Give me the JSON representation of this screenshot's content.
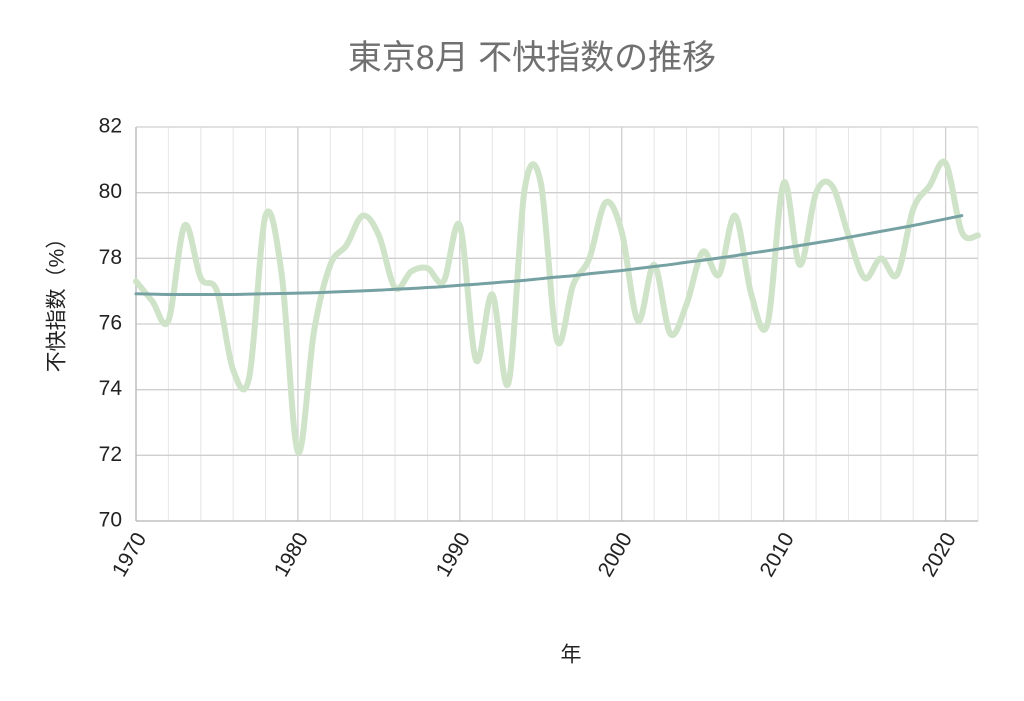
{
  "chart_data": {
    "type": "line",
    "title": "東京8月 不快指数の推移",
    "x_label": "年",
    "y_label": "不快指数（%）",
    "x": [
      1970,
      1971,
      1972,
      1973,
      1974,
      1975,
      1976,
      1977,
      1978,
      1979,
      1980,
      1981,
      1982,
      1983,
      1984,
      1985,
      1986,
      1987,
      1988,
      1989,
      1990,
      1991,
      1992,
      1993,
      1994,
      1995,
      1996,
      1997,
      1998,
      1999,
      2000,
      2001,
      2002,
      2003,
      2004,
      2005,
      2006,
      2007,
      2008,
      2009,
      2010,
      2011,
      2012,
      2013,
      2014,
      2015,
      2016,
      2017,
      2018,
      2019,
      2020,
      2021,
      2022
    ],
    "series": [
      {
        "color": "#cfe3c9",
        "width": 6,
        "smooth": true,
        "values": [
          77.3,
          76.7,
          76.1,
          79.0,
          77.4,
          77.0,
          74.6,
          74.4,
          79.3,
          77.5,
          72.1,
          75.8,
          77.8,
          78.4,
          79.3,
          78.7,
          77.1,
          77.6,
          77.7,
          77.3,
          79.0,
          74.9,
          76.9,
          74.2,
          80.1,
          80.3,
          75.5,
          77.2,
          78.0,
          79.7,
          78.8,
          76.1,
          77.8,
          75.7,
          76.6,
          78.2,
          77.5,
          79.3,
          76.9,
          76.0,
          80.3,
          77.8,
          80.0,
          80.2,
          78.7,
          77.4,
          78.0,
          77.5,
          79.5,
          80.2,
          80.9,
          78.8,
          78.7
        ]
      },
      {
        "color": "#76a1a3",
        "width": 3,
        "smooth": true,
        "values": [
          76.92,
          76.91,
          76.9,
          76.9,
          76.9,
          76.9,
          76.9,
          76.91,
          76.92,
          76.93,
          76.94,
          76.95,
          76.97,
          76.99,
          77.01,
          77.03,
          77.06,
          77.08,
          77.11,
          77.14,
          77.18,
          77.21,
          77.25,
          77.29,
          77.33,
          77.38,
          77.43,
          77.47,
          77.53,
          77.58,
          77.63,
          77.69,
          77.75,
          77.81,
          77.88,
          77.94,
          78.01,
          78.08,
          78.16,
          78.23,
          78.31,
          78.39,
          78.47,
          78.55,
          78.64,
          78.73,
          78.82,
          78.91,
          79.0,
          79.1,
          79.2,
          79.3,
          null
        ]
      }
    ],
    "xlim": [
      1970,
      2022
    ],
    "xticks": [
      1970,
      1980,
      1990,
      2000,
      2010,
      2020
    ],
    "x_minor_ticks": [
      1972,
      1974,
      1976,
      1978,
      1982,
      1984,
      1986,
      1988,
      1992,
      1994,
      1996,
      1998,
      2002,
      2004,
      2006,
      2008,
      2012,
      2014,
      2016,
      2018,
      2022
    ],
    "ylim": [
      70,
      82
    ],
    "yticks": [
      70,
      72,
      74,
      76,
      78,
      80,
      82
    ],
    "grid": true
  }
}
